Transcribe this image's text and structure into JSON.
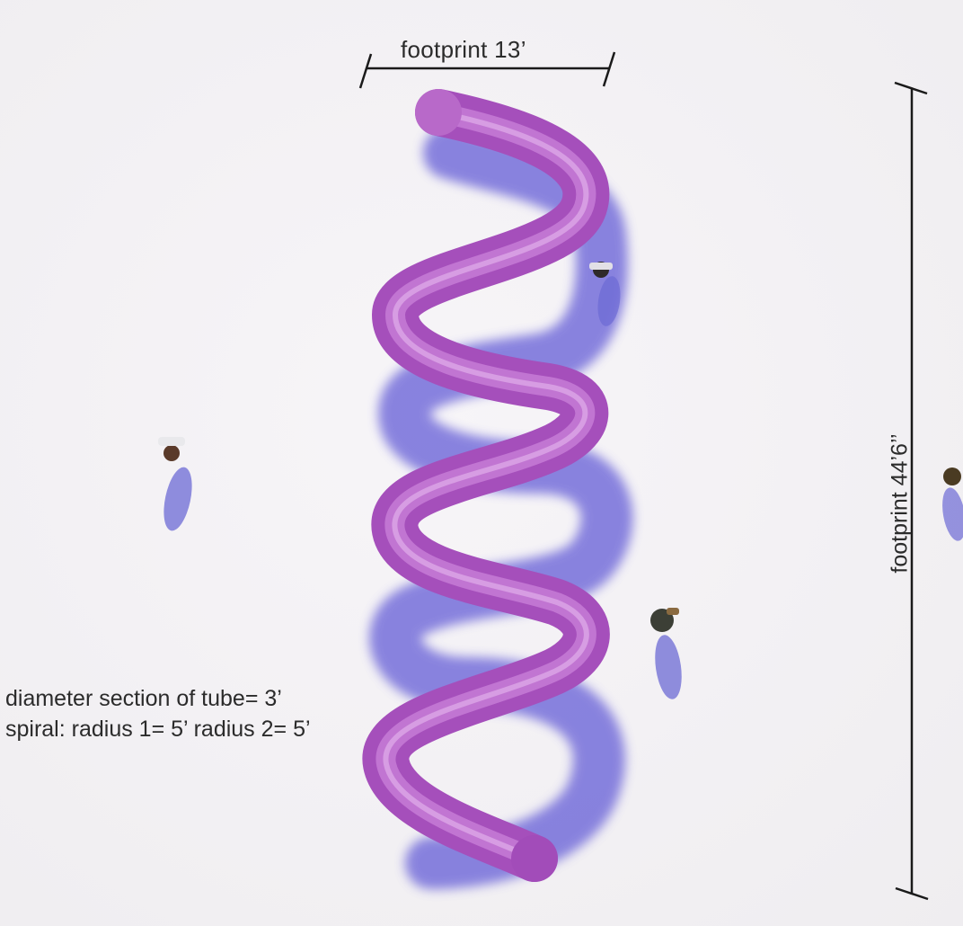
{
  "dimensions": {
    "width_label": "footprint  13’",
    "length_label": "footprint 44’6’’"
  },
  "specs": [
    "diameter section of tube= 3’",
    "spiral: radius 1= 5’ radius 2= 5’"
  ],
  "colors": {
    "tube": "#b05ac4",
    "tube_highlight": "#cf86dc",
    "shadow": "#6a64d8",
    "ground": "#f3f1f4",
    "dimension_line": "#1a1a1a"
  }
}
